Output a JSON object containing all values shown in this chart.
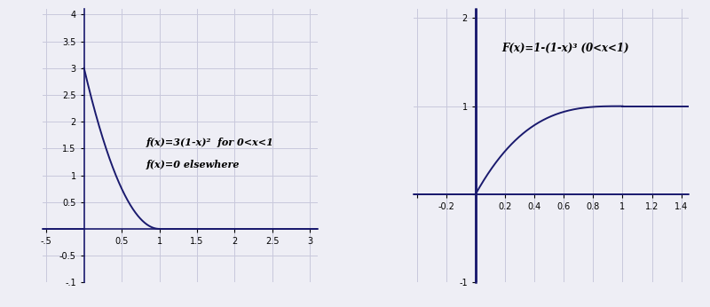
{
  "fig_width": 8.0,
  "fig_height": 3.46,
  "bg_color": "#eeeef5",
  "plot_bg": "#eeeef5",
  "line_color": "#1a1a6e",
  "grid_color": "#c8c8dc",
  "left_xlim": [
    -0.55,
    3.1
  ],
  "left_ylim": [
    -1.0,
    4.1
  ],
  "left_annotation_line1": "f(x)=3(1-x)²  for 0<x<1",
  "left_annotation_line2": "f(x)=0 elsewhere",
  "right_xlim": [
    -0.42,
    1.45
  ],
  "right_ylim": [
    -1.0,
    2.1
  ],
  "right_annotation": "F(x)=1-(1-x)³ (0<x<1)"
}
